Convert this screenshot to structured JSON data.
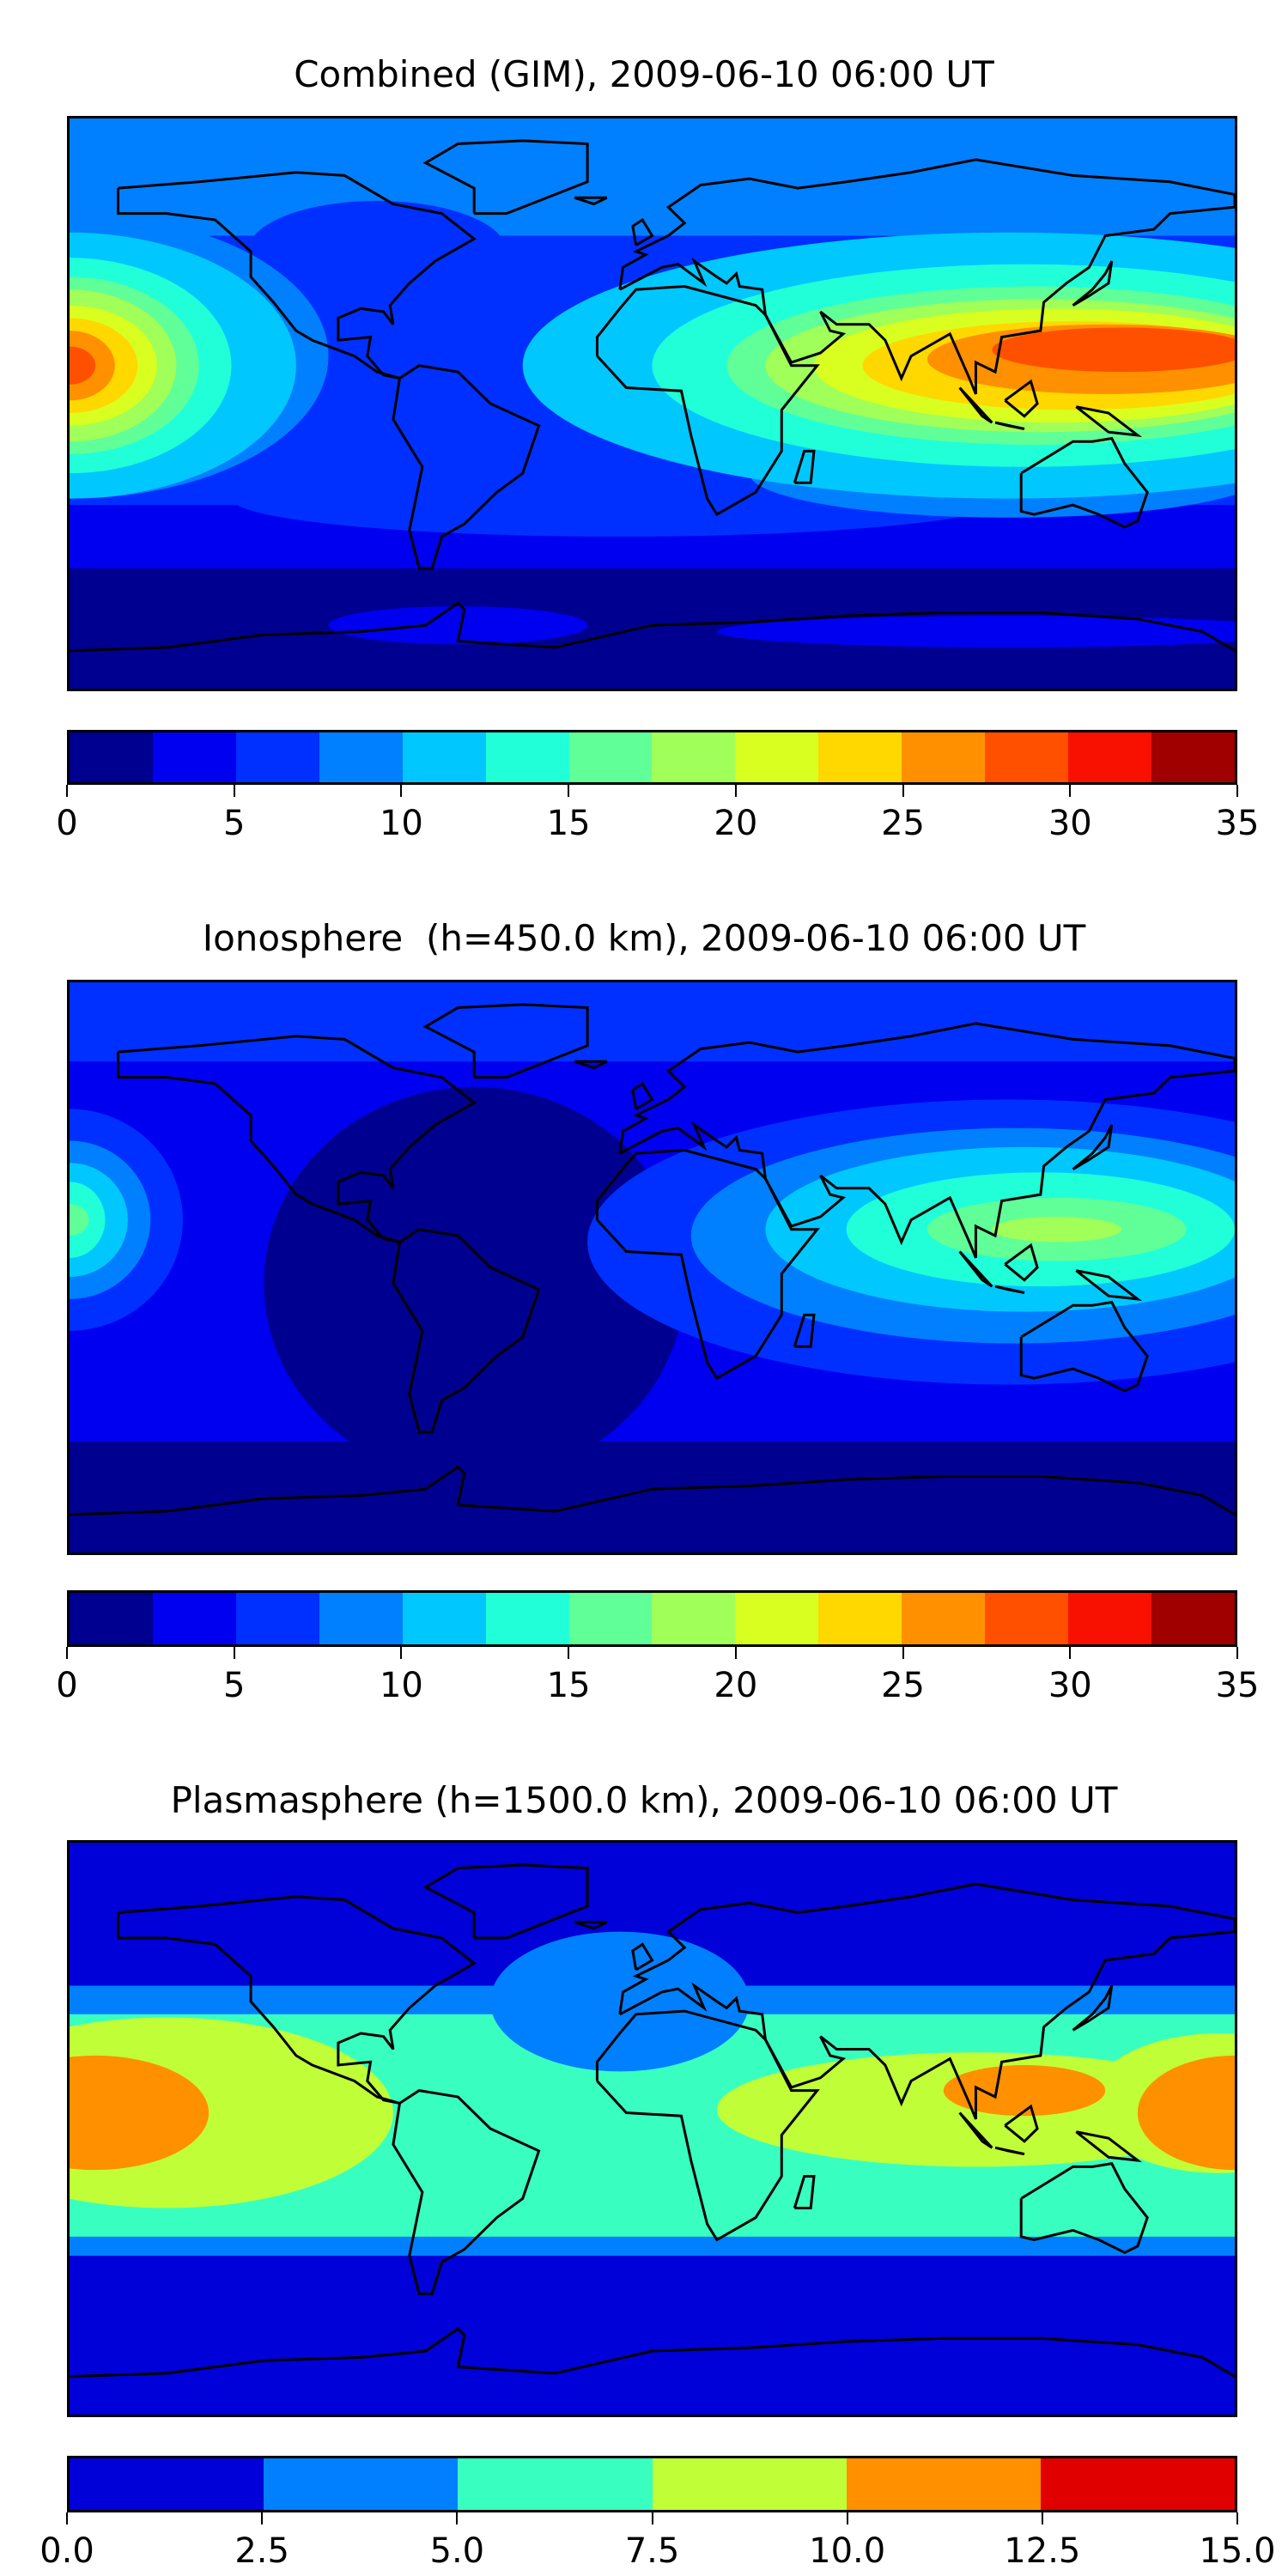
{
  "chart_data": [
    {
      "type": "heatmap",
      "subtype": "filled-contour world map",
      "title": "Combined (GIM), 2009-06-10 06:00 UT",
      "levels": [
        0,
        2.5,
        5,
        7.5,
        10,
        12.5,
        15,
        17.5,
        20,
        22.5,
        25,
        27.5,
        30,
        32.5,
        35
      ],
      "colors": [
        "#000090",
        "#0000f0",
        "#0030ff",
        "#0080ff",
        "#00c8ff",
        "#20ffd8",
        "#60ff98",
        "#a0ff58",
        "#d8ff20",
        "#ffd800",
        "#ff9000",
        "#ff5000",
        "#f81000",
        "#a00000"
      ],
      "colorbar_ticks": [
        "0",
        "5",
        "10",
        "15",
        "20",
        "25",
        "30",
        "35"
      ],
      "colorbar_range": [
        0,
        35
      ],
      "features": {
        "max_region_east": "SE Asia ~27.5-30",
        "max_region_west": "central Pacific ~30",
        "min_region": "Antarctica 0-2.5"
      }
    },
    {
      "type": "heatmap",
      "subtype": "filled-contour world map",
      "title": "Ionosphere  (h=450.0 km), 2009-06-10 06:00 UT",
      "levels": [
        0,
        2.5,
        5,
        7.5,
        10,
        12.5,
        15,
        17.5,
        20,
        22.5,
        25,
        27.5,
        30,
        32.5,
        35
      ],
      "colors": [
        "#000090",
        "#0000f0",
        "#0030ff",
        "#0080ff",
        "#00c8ff",
        "#20ffd8",
        "#60ff98",
        "#a0ff58",
        "#d8ff20",
        "#ffd800",
        "#ff9000",
        "#ff5000",
        "#f81000",
        "#a00000"
      ],
      "colorbar_ticks": [
        "0",
        "5",
        "10",
        "15",
        "20",
        "25",
        "30",
        "35"
      ],
      "colorbar_range": [
        0,
        35
      ],
      "features": {
        "max_region_east": "SE Asia ~17.5-22.5",
        "max_region_west": "central Pacific ~15-17.5",
        "min_region": "Atlantic / Antarctica 0-2.5"
      }
    },
    {
      "type": "heatmap",
      "subtype": "filled-contour world map",
      "title": "Plasmasphere (h=1500.0 km), 2009-06-10 06:00 UT",
      "levels": [
        0,
        2.5,
        5,
        7.5,
        10,
        12.5,
        15
      ],
      "colors": [
        "#0000d8",
        "#0080ff",
        "#38ffc0",
        "#c0ff38",
        "#ff9000",
        "#e00000"
      ],
      "colorbar_ticks": [
        "0.0",
        "2.5",
        "5.0",
        "7.5",
        "10.0",
        "12.5",
        "15.0"
      ],
      "colorbar_range": [
        0,
        15
      ],
      "features": {
        "max_region": "E Pacific, SE Asia, W Pacific 10-12.5",
        "min_region": "high latitudes 0-2.5"
      }
    }
  ]
}
